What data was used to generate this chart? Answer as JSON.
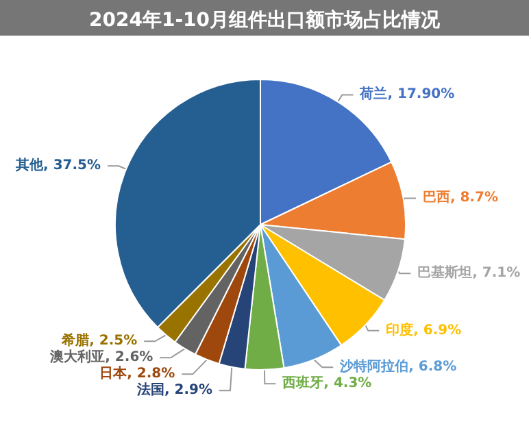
{
  "chart_data": {
    "type": "pie",
    "title": "2024年1-10月组件出口额市场占比情况",
    "categories": [
      "荷兰",
      "巴西",
      "巴基斯坦",
      "印度",
      "沙特阿拉伯",
      "西班牙",
      "法国",
      "日本",
      "澳大利亚",
      "希腊",
      "其他"
    ],
    "values": [
      17.9,
      8.7,
      7.1,
      6.9,
      6.8,
      4.3,
      2.9,
      2.8,
      2.6,
      2.5,
      37.5
    ],
    "value_labels": [
      "17.90%",
      "8.7%",
      "7.1%",
      "6.9%",
      "6.8%",
      "4.3%",
      "2.9%",
      "2.8%",
      "2.6%",
      "2.5%",
      "37.5%"
    ],
    "colors": [
      "#4472c4",
      "#ed7d31",
      "#a5a5a5",
      "#ffc000",
      "#5b9bd5",
      "#70ad47",
      "#264478",
      "#9e480e",
      "#636363",
      "#997300",
      "#255e91"
    ],
    "legend": false
  }
}
